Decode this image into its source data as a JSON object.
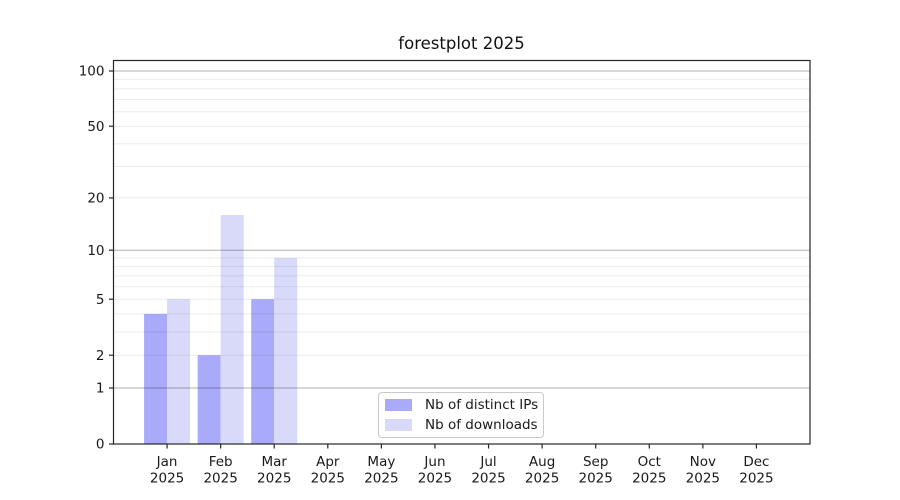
{
  "chart_data": {
    "type": "bar",
    "title": "forestplot 2025",
    "categories": [
      "Jan",
      "Feb",
      "Mar",
      "Apr",
      "May",
      "Jun",
      "Jul",
      "Aug",
      "Sep",
      "Oct",
      "Nov",
      "Dec"
    ],
    "category_year_label": "2025",
    "series": [
      {
        "name": "Nb of distinct IPs",
        "color": "#a9aaf9",
        "values": [
          4,
          2,
          5,
          0,
          0,
          0,
          0,
          0,
          0,
          0,
          0,
          0
        ]
      },
      {
        "name": "Nb of downloads",
        "color": "#d9dafa",
        "values": [
          5,
          16,
          9,
          0,
          0,
          0,
          0,
          0,
          0,
          0,
          0,
          0
        ]
      }
    ],
    "xlabel": "",
    "ylabel": "",
    "y_axis": {
      "scale": "log1p",
      "tick_values": [
        0,
        1,
        2,
        5,
        10,
        20,
        50,
        100
      ],
      "tick_labels": [
        "0",
        "1",
        "2",
        "5",
        "10",
        "20",
        "50",
        "100"
      ],
      "major_grid_values": [
        1,
        10,
        100
      ],
      "minor_grid_values": [
        2,
        3,
        4,
        5,
        6,
        7,
        8,
        9,
        20,
        30,
        40,
        50,
        60,
        70,
        80,
        90
      ],
      "ylim": [
        0,
        114
      ]
    },
    "legend": {
      "position": "lower center"
    },
    "grid": true,
    "colors": {
      "spine": "#262626",
      "tick_text": "#1a1a1a",
      "major_grid": "rgba(0,0,0,0.30)",
      "minor_grid": "rgba(0,0,0,0.08)"
    }
  }
}
